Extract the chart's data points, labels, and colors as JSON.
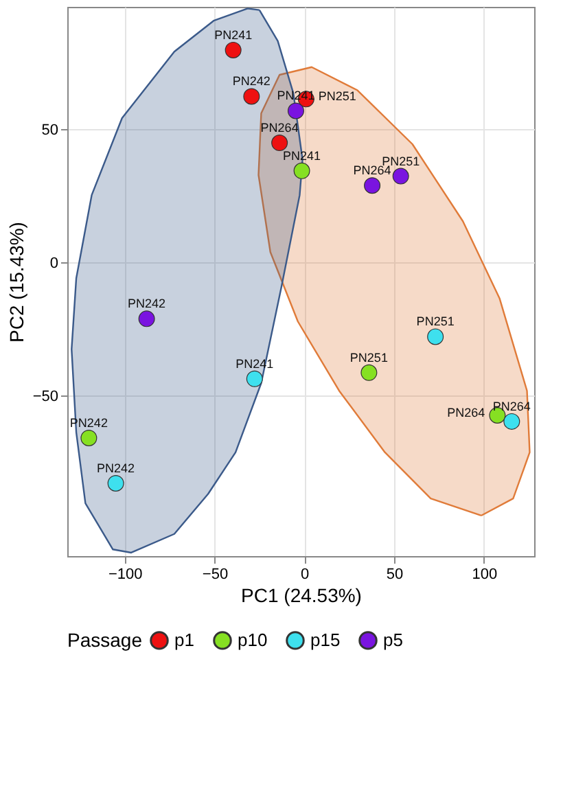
{
  "chart_data": {
    "type": "scatter",
    "xlabel": "PC1 (24.53%)",
    "ylabel": "PC2 (15.43%)",
    "legend_title": "Passage",
    "xlim": [
      -132,
      128
    ],
    "ylim": [
      -110,
      96
    ],
    "xticks": [
      -100,
      -50,
      0,
      50,
      100
    ],
    "yticks": [
      -50,
      0,
      50
    ],
    "grid": true,
    "legend": "bottom",
    "marker": "circle",
    "series": [
      {
        "type": "area",
        "marker": "none",
        "color": "#e07b39",
        "x": [
          98.5,
          116.3,
          125.5,
          124,
          108.7,
          88.3,
          60.2,
          29.6,
          4.1,
          -13.8,
          -24,
          -25.5,
          -18.9,
          -3.6,
          19.4,
          44.9,
          70.4,
          98.5
        ],
        "values": [
          -94.8,
          -88.4,
          -71.1,
          -48,
          -13.3,
          15.6,
          44.5,
          64.7,
          73.4,
          70.5,
          56.1,
          32.9,
          4,
          -22,
          -48,
          -71.1,
          -88.4,
          -94.8
        ]
      },
      {
        "type": "area",
        "marker": "none",
        "color": "#3b5a8a",
        "x": [
          -25,
          -31.6,
          -50.5,
          -72.4,
          -101.5,
          -118.4,
          -127,
          -129.6,
          -127,
          -121.9,
          -106.6,
          -96.4,
          -72.4,
          -53.6,
          -38.3,
          -24,
          -12.8,
          -2.6,
          -1,
          -6.1,
          -14.8,
          -25
        ],
        "values": [
          94.8,
          95.4,
          90.8,
          79.2,
          54.3,
          25.4,
          -5.8,
          -32.4,
          -63.6,
          -90.2,
          -107.5,
          -108.7,
          -101.7,
          -86.7,
          -71.1,
          -45.1,
          -9.2,
          25.4,
          38.7,
          63.6,
          83.2,
          94.8
        ]
      },
      {
        "name": "p1",
        "color": "#ee1111",
        "x": [
          1,
          -13.8,
          -29.4,
          -39.6
        ],
        "values": [
          61.4,
          45,
          62.4,
          79.8
        ]
      },
      {
        "name": "p10",
        "color": "#86e022",
        "x": [
          107.5,
          36,
          -1.4,
          -120
        ],
        "values": [
          -57.2,
          -41.2,
          34.5,
          -65.7
        ]
      },
      {
        "name": "p15",
        "color": "#3ee0ee",
        "x": [
          115.5,
          73,
          -27.7,
          -105
        ],
        "values": [
          -59.5,
          -27.7,
          -43.5,
          -82.7
        ]
      },
      {
        "name": "p5",
        "color": "#7a14e0",
        "x": [
          53.7,
          37.8,
          -4.7,
          -87.8
        ],
        "values": [
          32.5,
          29,
          57,
          -21
        ]
      }
    ],
    "annotations": [
      {
        "text": "PN251",
        "x": 1,
        "y": 61.4
      },
      {
        "text": "PN264",
        "x": -13.8,
        "y": 45
      },
      {
        "text": "PN242",
        "x": -29.4,
        "y": 62.4
      },
      {
        "text": "PN241",
        "x": -39.6,
        "y": 79.8
      },
      {
        "text": "PN264",
        "x": 107.5,
        "y": -57.2
      },
      {
        "text": "PN251",
        "x": 36,
        "y": -41.2
      },
      {
        "text": "PN241",
        "x": -1.4,
        "y": 34.5
      },
      {
        "text": "PN242",
        "x": -120,
        "y": -65.7
      },
      {
        "text": "PN264",
        "x": 115.5,
        "y": -59.5
      },
      {
        "text": "PN251",
        "x": 73,
        "y": -27.7
      },
      {
        "text": "PN241",
        "x": -27.7,
        "y": -43.5
      },
      {
        "text": "PN242",
        "x": -105,
        "y": -82.7
      },
      {
        "text": "PN251",
        "x": 53.7,
        "y": 32.5
      },
      {
        "text": "PN264",
        "x": 37.8,
        "y": 29
      },
      {
        "text": "PN241",
        "x": -4.7,
        "y": 57
      },
      {
        "text": "PN242",
        "x": -87.8,
        "y": -21
      }
    ]
  }
}
